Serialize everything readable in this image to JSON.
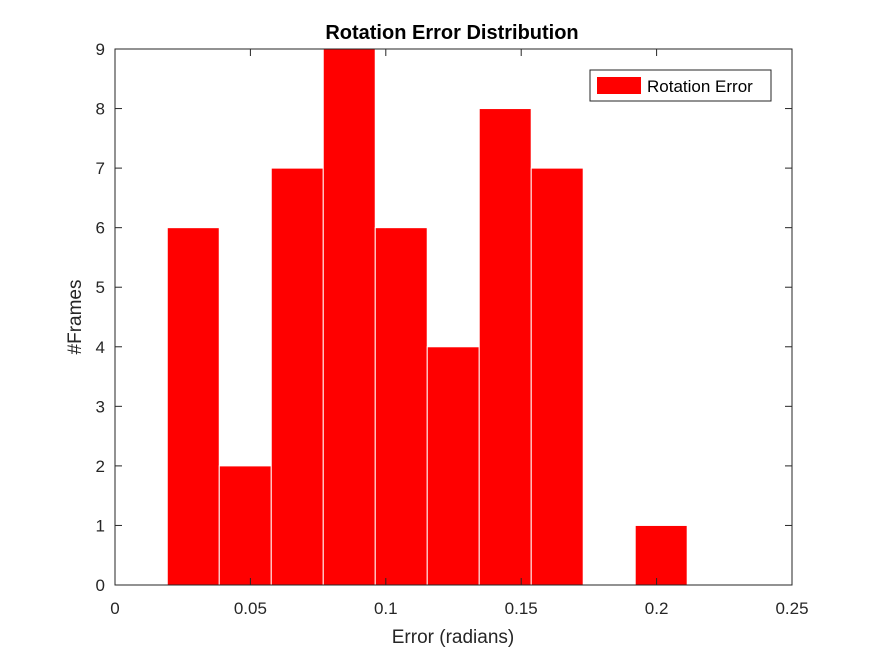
{
  "chart_data": {
    "type": "bar",
    "title": "Rotation Error Distribution",
    "xlabel": "Error (radians)",
    "ylabel": "#Frames",
    "xlim": [
      0,
      0.25
    ],
    "ylim": [
      0,
      9
    ],
    "xticks": [
      0,
      0.05,
      0.1,
      0.15,
      0.2,
      0.25
    ],
    "xtick_labels": [
      "0",
      "0.05",
      "0.1",
      "0.15",
      "0.2",
      "0.25"
    ],
    "yticks": [
      0,
      1,
      2,
      3,
      4,
      5,
      6,
      7,
      8,
      9
    ],
    "ytick_labels": [
      "0",
      "1",
      "2",
      "3",
      "4",
      "5",
      "6",
      "7",
      "8",
      "9"
    ],
    "bin_edges": [
      0.0193,
      0.0385,
      0.0577,
      0.0769,
      0.0961,
      0.1153,
      0.1345,
      0.1537,
      0.1729,
      0.1921,
      0.2113
    ],
    "series": [
      {
        "name": "Rotation Error",
        "values": [
          6,
          2,
          7,
          9,
          6,
          4,
          8,
          7,
          0,
          1
        ]
      }
    ],
    "grid": false,
    "legend_position": "top-right",
    "colors": {
      "bar_fill": "#ff0000",
      "bar_edge": "#ffffff",
      "axes": "#262626"
    }
  }
}
